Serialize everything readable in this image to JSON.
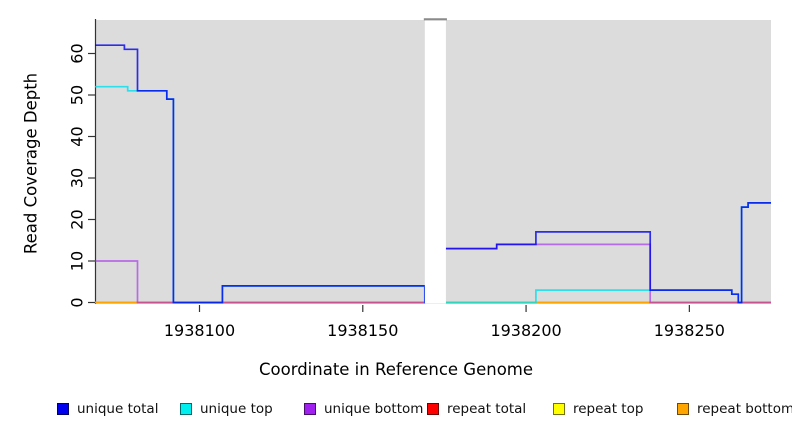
{
  "figure": {
    "xlabel": "Coordinate in Reference Genome",
    "ylabel": "Read Coverage Depth"
  },
  "chart_data": {
    "type": "line",
    "step": true,
    "title": "",
    "xlabel": "Coordinate in Reference Genome",
    "ylabel": "Read Coverage Depth",
    "xlim": [
      1938068,
      1938275
    ],
    "ylim": [
      0,
      65
    ],
    "x_ticks": [
      1938100,
      1938150,
      1938200,
      1938250
    ],
    "y_ticks": [
      0,
      10,
      20,
      30,
      40,
      50,
      60
    ],
    "grid": false,
    "panel_background": "#dcdcdc",
    "gap_region": {
      "from": 1938169,
      "to": 1938175,
      "note": "white no-data band"
    },
    "legend_position": "bottom",
    "series": [
      {
        "name": "repeat total",
        "color": "#ee0000",
        "opacity": 0.9,
        "points": [
          [
            1938068,
            0
          ],
          [
            1938275,
            0
          ]
        ]
      },
      {
        "name": "repeat top",
        "color": "#f5f500",
        "opacity": 0.9,
        "points": [
          [
            1938068,
            0
          ],
          [
            1938275,
            0
          ]
        ]
      },
      {
        "name": "repeat bottom",
        "color": "#ff9f00",
        "opacity": 0.95,
        "points": [
          [
            1938068,
            0
          ],
          [
            1938275,
            0
          ]
        ]
      },
      {
        "name": "unique bottom",
        "color": "#a020f0",
        "opacity": 0.6,
        "points": [
          [
            1938068,
            10
          ],
          [
            1938081,
            0
          ],
          [
            1938175,
            13
          ],
          [
            1938191,
            14
          ],
          [
            1938238,
            0
          ],
          [
            1938275,
            0
          ]
        ]
      },
      {
        "name": "unique top",
        "color": "#00e0ee",
        "opacity": 0.8,
        "points": [
          [
            1938068,
            52
          ],
          [
            1938078,
            51
          ],
          [
            1938090,
            49
          ],
          [
            1938092,
            0
          ],
          [
            1938107,
            4
          ],
          [
            1938169,
            0
          ],
          [
            1938203,
            3
          ],
          [
            1938263,
            2
          ],
          [
            1938265,
            0
          ],
          [
            1938266,
            23
          ],
          [
            1938268,
            24
          ],
          [
            1938275,
            24
          ]
        ]
      },
      {
        "name": "unique total",
        "color": "#0000ee",
        "opacity": 0.8,
        "points": [
          [
            1938068,
            62
          ],
          [
            1938077,
            61
          ],
          [
            1938081,
            51
          ],
          [
            1938090,
            49
          ],
          [
            1938092,
            0
          ],
          [
            1938107,
            4
          ],
          [
            1938169,
            0
          ],
          [
            1938175,
            13
          ],
          [
            1938191,
            14
          ],
          [
            1938203,
            17
          ],
          [
            1938238,
            3
          ],
          [
            1938263,
            2
          ],
          [
            1938265,
            0
          ],
          [
            1938266,
            23
          ],
          [
            1938268,
            24
          ],
          [
            1938275,
            24
          ]
        ]
      }
    ]
  },
  "legend": {
    "items": [
      {
        "label": "unique total",
        "color": "#0000ee"
      },
      {
        "label": "unique top",
        "color": "#00eeee"
      },
      {
        "label": "unique bottom",
        "color": "#a020f0"
      },
      {
        "label": "repeat total",
        "color": "#ff0000"
      },
      {
        "label": "repeat top",
        "color": "#ffff00"
      },
      {
        "label": "repeat bottom",
        "color": "#ffa500"
      }
    ]
  }
}
